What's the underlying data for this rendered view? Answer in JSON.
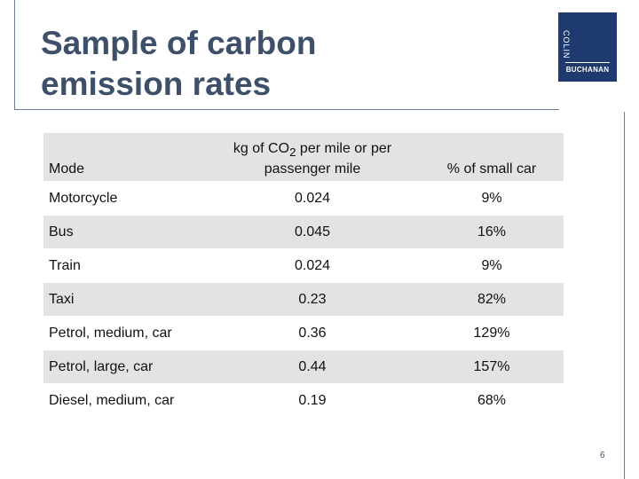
{
  "slide": {
    "title_line1": "Sample of carbon",
    "title_line2": "emission rates",
    "page_number": "6"
  },
  "logo": {
    "top_text": "COLIN",
    "bottom_text": "BUCHANAN"
  },
  "table": {
    "headers": {
      "mode": "Mode",
      "kg_line1_pre": "kg of CO",
      "kg_sub": "2",
      "kg_line1_post": " per mile or per",
      "kg_line2": "passenger mile",
      "pct": "% of small car"
    },
    "rows": [
      {
        "mode": "Motorcycle",
        "kg": "0.024",
        "pct": "9%"
      },
      {
        "mode": "Bus",
        "kg": "0.045",
        "pct": "16%"
      },
      {
        "mode": "Train",
        "kg": "0.024",
        "pct": "9%"
      },
      {
        "mode": "Taxi",
        "kg": "0.23",
        "pct": "82%"
      },
      {
        "mode": "Petrol, medium, car",
        "kg": "0.36",
        "pct": "129%"
      },
      {
        "mode": "Petrol, large, car",
        "kg": "0.44",
        "pct": "157%"
      },
      {
        "mode": "Diesel, medium, car",
        "kg": "0.19",
        "pct": "68%"
      }
    ]
  },
  "colors": {
    "title": "#3d4f69",
    "logo_bg": "#1e3a6e",
    "row_shade": "#e3e3e3"
  }
}
